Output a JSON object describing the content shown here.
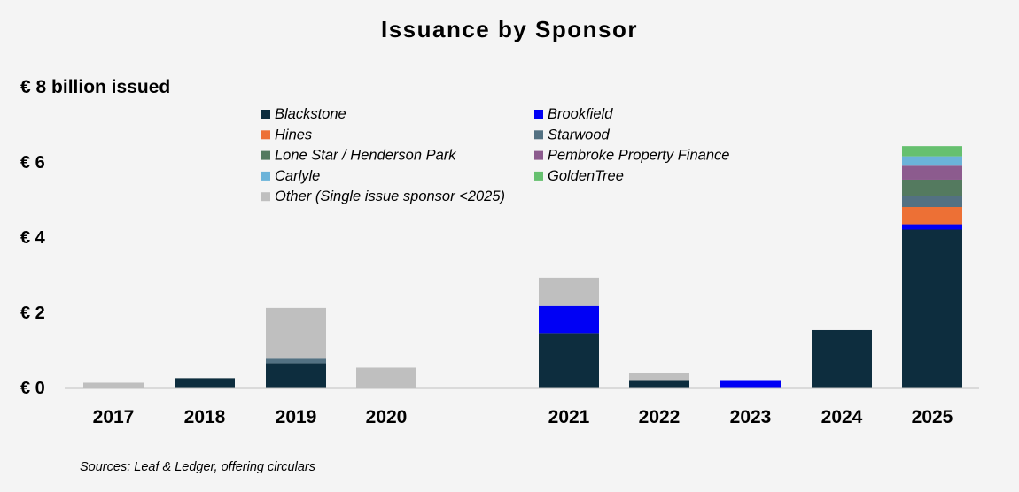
{
  "chart_data": {
    "type": "bar",
    "stacked": true,
    "title": "Issuance by Sponsor",
    "ylabel": "€ 8 billion issued",
    "ylim": [
      0,
      8
    ],
    "yticks": [
      {
        "value": 0,
        "label": "€ 0"
      },
      {
        "value": 2,
        "label": "€ 2"
      },
      {
        "value": 4,
        "label": "€ 4"
      },
      {
        "value": 6,
        "label": "€ 6"
      }
    ],
    "categories": [
      "2017",
      "2018",
      "2019",
      "2020",
      "2021",
      "2022",
      "2023",
      "2024",
      "2025"
    ],
    "series": [
      {
        "name": "Blackstone",
        "color": "#0d2d3e",
        "values": [
          0,
          0.25,
          0.65,
          0,
          1.45,
          0.2,
          0,
          1.53,
          4.2
        ]
      },
      {
        "name": "Brookfield",
        "color": "#0000f5",
        "values": [
          0,
          0,
          0,
          0,
          0.72,
          0,
          0.2,
          0,
          0.14
        ]
      },
      {
        "name": "Hines",
        "color": "#ed7035",
        "values": [
          0,
          0,
          0,
          0,
          0,
          0,
          0,
          0,
          0.46
        ]
      },
      {
        "name": "Starwood",
        "color": "#537182",
        "values": [
          0,
          0,
          0.12,
          0,
          0,
          0,
          0,
          0,
          0.3
        ]
      },
      {
        "name": "Lone Star / Henderson Park",
        "color": "#547a5f",
        "values": [
          0,
          0,
          0,
          0,
          0,
          0,
          0,
          0,
          0.43
        ]
      },
      {
        "name": "Pembroke Property Finance",
        "color": "#8c5b8e",
        "values": [
          0,
          0,
          0,
          0,
          0,
          0,
          0,
          0,
          0.37
        ]
      },
      {
        "name": "Carlyle",
        "color": "#6bb3d9",
        "values": [
          0,
          0,
          0,
          0,
          0,
          0,
          0,
          0,
          0.25
        ]
      },
      {
        "name": "GoldenTree",
        "color": "#66c06f",
        "values": [
          0,
          0,
          0,
          0,
          0,
          0,
          0,
          0,
          0.27
        ]
      },
      {
        "name": "Other (Single issue sponsor <2025)",
        "color": "#bfbfbf",
        "values": [
          0.13,
          0,
          1.35,
          0.53,
          0.75,
          0.2,
          0,
          0,
          0
        ]
      }
    ],
    "legend_position": "top-center",
    "grid": false
  },
  "source_note": "Sources: Leaf & Ledger, offering circulars"
}
